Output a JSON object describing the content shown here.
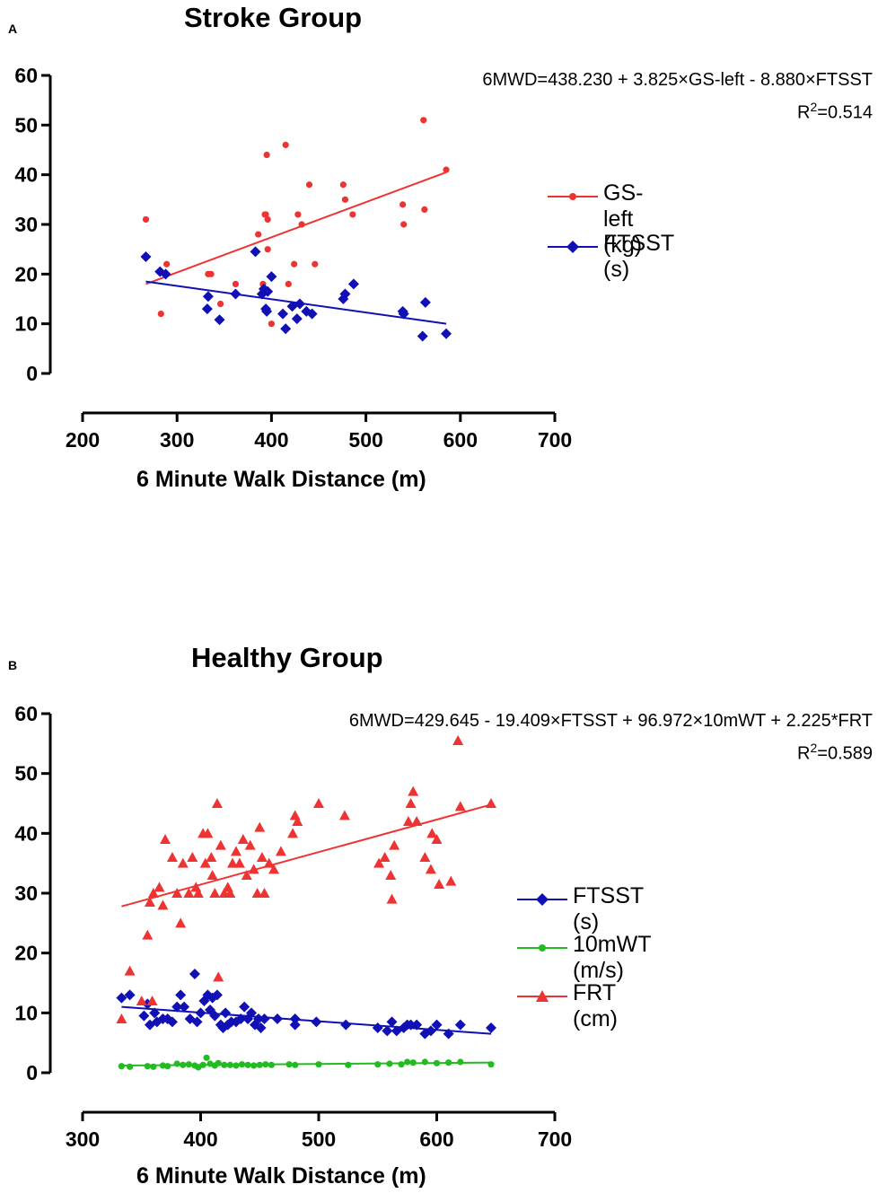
{
  "colors": {
    "red": "#ee3333",
    "blue": "#1010b4",
    "green": "#22bb22",
    "axis": "#000000"
  },
  "chart_data": [
    {
      "type": "scatter",
      "panel": "A",
      "title": "Stroke Group",
      "equation": "6MWD=438.230 + 3.825×GS-left - 8.880×FTSST",
      "r2_prefix": "R",
      "r2_sup": "2",
      "r2_value": "=0.514",
      "xlabel": "6 Minute Walk Distance (m)",
      "ylabel": "",
      "xlim": [
        200,
        700
      ],
      "ylim": [
        0,
        60
      ],
      "xticks": [
        200,
        300,
        400,
        500,
        600,
        700
      ],
      "yticks": [
        0,
        10,
        20,
        30,
        40,
        50,
        60
      ],
      "legend_position": "right",
      "series": [
        {
          "name": "GS-left (kg)",
          "color": "red",
          "marker": "circle",
          "points": [
            [
              267,
              31
            ],
            [
              283,
              12
            ],
            [
              289,
              22
            ],
            [
              333,
              20
            ],
            [
              336,
              20
            ],
            [
              346,
              14
            ],
            [
              362,
              18
            ],
            [
              386,
              28
            ],
            [
              391,
              18
            ],
            [
              393,
              32
            ],
            [
              394,
              32
            ],
            [
              395,
              44
            ],
            [
              396,
              25
            ],
            [
              396,
              31
            ],
            [
              400,
              10
            ],
            [
              415,
              46
            ],
            [
              418,
              18
            ],
            [
              424,
              22
            ],
            [
              428,
              32
            ],
            [
              432,
              30
            ],
            [
              440,
              38
            ],
            [
              446,
              22
            ],
            [
              476,
              38
            ],
            [
              478,
              35
            ],
            [
              486,
              32
            ],
            [
              539,
              34
            ],
            [
              540,
              30
            ],
            [
              561,
              51
            ],
            [
              562,
              33
            ],
            [
              585,
              41
            ]
          ],
          "fit": [
            [
              267,
              18
            ],
            [
              585,
              40.5
            ]
          ]
        },
        {
          "name": "FTSST (s)",
          "color": "blue",
          "marker": "diamond",
          "points": [
            [
              267,
              23.5
            ],
            [
              282,
              20.5
            ],
            [
              288,
              20
            ],
            [
              332,
              13
            ],
            [
              333,
              15.5
            ],
            [
              345,
              10.8
            ],
            [
              362,
              16
            ],
            [
              383,
              24.5
            ],
            [
              390,
              16
            ],
            [
              392,
              17
            ],
            [
              394,
              13
            ],
            [
              395,
              12.5
            ],
            [
              396,
              16.5
            ],
            [
              400,
              19.5
            ],
            [
              412,
              12
            ],
            [
              415,
              9
            ],
            [
              422,
              13.5
            ],
            [
              427,
              11
            ],
            [
              430,
              14
            ],
            [
              437,
              12.5
            ],
            [
              443,
              12
            ],
            [
              476,
              15
            ],
            [
              478,
              16
            ],
            [
              487,
              18
            ],
            [
              539,
              12.5
            ],
            [
              540,
              12
            ],
            [
              560,
              7.5
            ],
            [
              563,
              14.3
            ],
            [
              585,
              8
            ]
          ],
          "fit": [
            [
              267,
              18.5
            ],
            [
              585,
              10
            ]
          ]
        }
      ]
    },
    {
      "type": "scatter",
      "panel": "B",
      "title": "Healthy Group",
      "equation": "6MWD=429.645 - 19.409×FTSST + 96.972×10mWT + 2.225*FRT",
      "r2_prefix": "R",
      "r2_sup": "2",
      "r2_value": "=0.589",
      "xlabel": "6 Minute Walk Distance (m)",
      "ylabel": "",
      "xlim": [
        300,
        700
      ],
      "ylim": [
        0,
        60
      ],
      "xticks": [
        300,
        400,
        500,
        600,
        700
      ],
      "yticks": [
        0,
        10,
        20,
        30,
        40,
        50,
        60
      ],
      "legend_position": "right",
      "series": [
        {
          "name": "FTSST (s)",
          "color": "blue",
          "marker": "diamond",
          "points": [
            [
              333,
              12.5
            ],
            [
              340,
              13
            ],
            [
              352,
              9.5
            ],
            [
              355,
              11.5
            ],
            [
              357,
              8
            ],
            [
              361,
              10
            ],
            [
              363,
              8.5
            ],
            [
              368,
              9
            ],
            [
              372,
              9
            ],
            [
              376,
              8.5
            ],
            [
              380,
              11
            ],
            [
              383,
              13
            ],
            [
              386,
              11
            ],
            [
              391,
              9
            ],
            [
              395,
              16.5
            ],
            [
              397,
              8.5
            ],
            [
              400,
              10
            ],
            [
              403,
              12
            ],
            [
              406,
              13
            ],
            [
              408,
              10.5
            ],
            [
              410,
              12.5
            ],
            [
              412,
              9.5
            ],
            [
              414,
              13
            ],
            [
              417,
              8
            ],
            [
              419,
              7.5
            ],
            [
              421,
              10
            ],
            [
              423,
              8
            ],
            [
              426,
              8.5
            ],
            [
              430,
              8.5
            ],
            [
              434,
              9
            ],
            [
              437,
              11
            ],
            [
              440,
              9
            ],
            [
              443,
              10
            ],
            [
              446,
              8
            ],
            [
              449,
              9
            ],
            [
              451,
              7.5
            ],
            [
              454,
              9
            ],
            [
              465,
              9
            ],
            [
              480,
              9
            ],
            [
              480,
              8
            ],
            [
              498,
              8.5
            ],
            [
              523,
              8
            ],
            [
              550,
              7.5
            ],
            [
              558,
              7
            ],
            [
              562,
              8.5
            ],
            [
              566,
              7
            ],
            [
              572,
              7.5
            ],
            [
              575,
              8
            ],
            [
              578,
              8
            ],
            [
              583,
              8
            ],
            [
              590,
              6.5
            ],
            [
              595,
              7
            ],
            [
              600,
              8
            ],
            [
              610,
              6.5
            ],
            [
              620,
              8
            ],
            [
              646,
              7.5
            ]
          ],
          "fit": [
            [
              333,
              11
            ],
            [
              646,
              6.5
            ]
          ]
        },
        {
          "name": "10mWT (m/s)",
          "color": "green",
          "marker": "circle",
          "points": [
            [
              333,
              1.1
            ],
            [
              340,
              1
            ],
            [
              355,
              1.1
            ],
            [
              360,
              1
            ],
            [
              368,
              1.2
            ],
            [
              372,
              1.1
            ],
            [
              380,
              1.5
            ],
            [
              385,
              1.3
            ],
            [
              390,
              1.4
            ],
            [
              395,
              1.2
            ],
            [
              398,
              0.9
            ],
            [
              402,
              1.3
            ],
            [
              405,
              2.5
            ],
            [
              408,
              1.5
            ],
            [
              412,
              1.2
            ],
            [
              415,
              1.6
            ],
            [
              420,
              1.3
            ],
            [
              425,
              1.3
            ],
            [
              430,
              1.2
            ],
            [
              435,
              1.4
            ],
            [
              440,
              1.3
            ],
            [
              445,
              1.2
            ],
            [
              450,
              1.3
            ],
            [
              455,
              1.4
            ],
            [
              460,
              1.3
            ],
            [
              475,
              1.4
            ],
            [
              480,
              1.3
            ],
            [
              500,
              1.4
            ],
            [
              525,
              1.3
            ],
            [
              550,
              1.4
            ],
            [
              560,
              1.5
            ],
            [
              570,
              1.4
            ],
            [
              575,
              1.8
            ],
            [
              580,
              1.7
            ],
            [
              590,
              1.8
            ],
            [
              600,
              1.6
            ],
            [
              610,
              1.7
            ],
            [
              620,
              1.8
            ],
            [
              646,
              1.4
            ]
          ],
          "fit": [
            [
              333,
              1.2
            ],
            [
              646,
              1.7
            ]
          ]
        },
        {
          "name": "FRT (cm)",
          "color": "red",
          "marker": "triangle",
          "points": [
            [
              333,
              9
            ],
            [
              340,
              17
            ],
            [
              350,
              12
            ],
            [
              355,
              23
            ],
            [
              357,
              28.5
            ],
            [
              359,
              12
            ],
            [
              360,
              30
            ],
            [
              365,
              31
            ],
            [
              368,
              28
            ],
            [
              370,
              39
            ],
            [
              376,
              36
            ],
            [
              380,
              30
            ],
            [
              383,
              25
            ],
            [
              385,
              35
            ],
            [
              390,
              30
            ],
            [
              393,
              36
            ],
            [
              396,
              31
            ],
            [
              398,
              30
            ],
            [
              402,
              40
            ],
            [
              404,
              35
            ],
            [
              406,
              40
            ],
            [
              409,
              36
            ],
            [
              410,
              33
            ],
            [
              412,
              30
            ],
            [
              414,
              45
            ],
            [
              415,
              16
            ],
            [
              417,
              38
            ],
            [
              420,
              30
            ],
            [
              423,
              31
            ],
            [
              425,
              30
            ],
            [
              427,
              35
            ],
            [
              430,
              37
            ],
            [
              433,
              35
            ],
            [
              436,
              39
            ],
            [
              439,
              33
            ],
            [
              442,
              38
            ],
            [
              445,
              34
            ],
            [
              448,
              30
            ],
            [
              450,
              41
            ],
            [
              452,
              36
            ],
            [
              454,
              30
            ],
            [
              458,
              35
            ],
            [
              462,
              34
            ],
            [
              468,
              37
            ],
            [
              478,
              40
            ],
            [
              480,
              43
            ],
            [
              482,
              42
            ],
            [
              500,
              45
            ],
            [
              522,
              43
            ],
            [
              551,
              35
            ],
            [
              556,
              36
            ],
            [
              561,
              33
            ],
            [
              562,
              29
            ],
            [
              564,
              38
            ],
            [
              576,
              42
            ],
            [
              578,
              45
            ],
            [
              580,
              47
            ],
            [
              583,
              42
            ],
            [
              590,
              36
            ],
            [
              595,
              34
            ],
            [
              596,
              40
            ],
            [
              600,
              39
            ],
            [
              602,
              31.5
            ],
            [
              612,
              32
            ],
            [
              620,
              44.5
            ],
            [
              646,
              45
            ],
            [
              618,
              55.5
            ]
          ],
          "fit": [
            [
              333,
              27.8
            ],
            [
              646,
              44.8
            ]
          ]
        }
      ]
    }
  ]
}
